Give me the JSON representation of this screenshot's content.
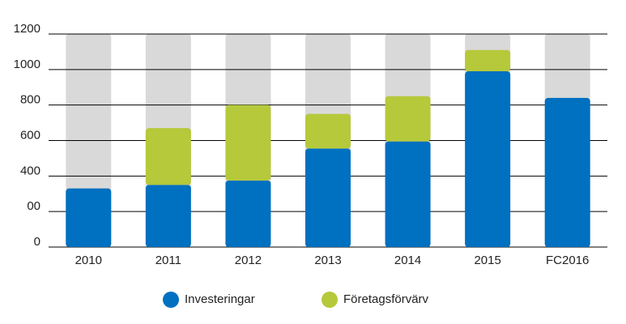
{
  "chart_data": {
    "type": "stacked-bar",
    "categories": [
      "2010",
      "2011",
      "2012",
      "2013",
      "2014",
      "2015",
      "FC2016"
    ],
    "series": [
      {
        "name": "Investeringar",
        "color": "#0070c0",
        "values": [
          330,
          350,
          375,
          555,
          595,
          990,
          840
        ]
      },
      {
        "name": "Företagsförvärv",
        "color": "#b5c93a",
        "values": [
          0,
          320,
          425,
          195,
          255,
          120,
          0
        ]
      }
    ],
    "ylim": [
      0,
      1200
    ],
    "yticks": [
      0,
      {
        "value": 200,
        "label": "00"
      },
      400,
      600,
      800,
      1000,
      1200
    ],
    "grid": true,
    "background_bar_color": "#d9d9d9",
    "legend": "bottom"
  }
}
